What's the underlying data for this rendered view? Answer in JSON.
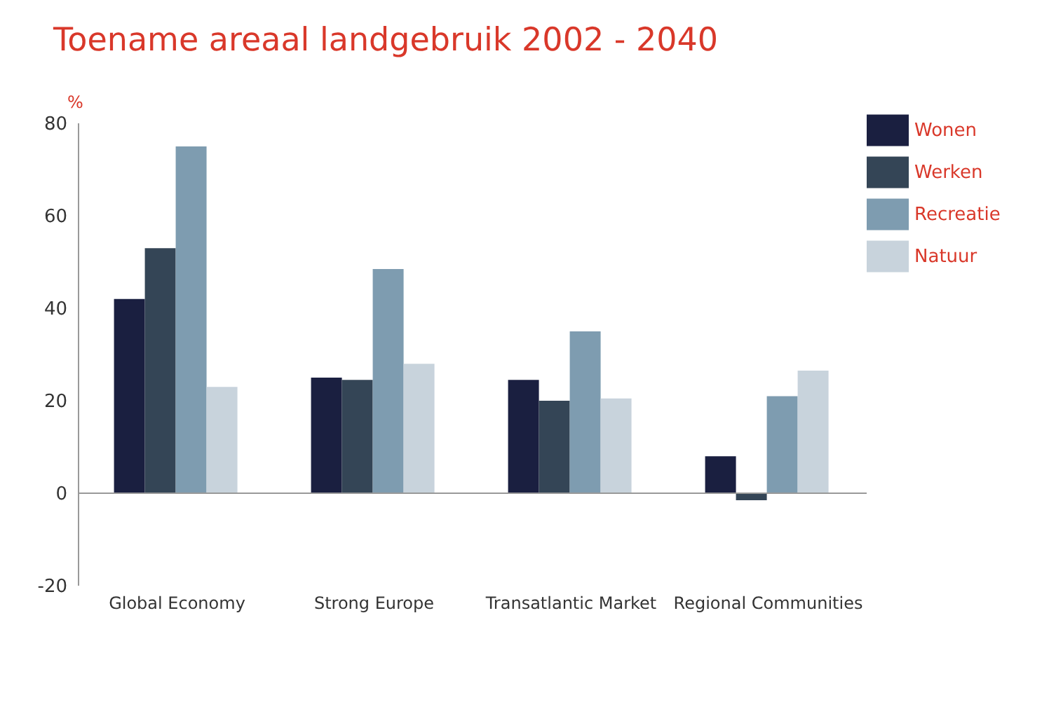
{
  "chart_data": {
    "type": "bar",
    "title": "Toename areaal landgebruik 2002 - 2040",
    "ylabel": "%",
    "categories": [
      "Global Economy",
      "Strong Europe",
      "Transatlantic Market",
      "Regional Communities"
    ],
    "series": [
      {
        "name": "Wonen",
        "color": "#1a1f40",
        "values": [
          42,
          25,
          24.5,
          8
        ]
      },
      {
        "name": "Werken",
        "color": "#344556",
        "values": [
          53,
          24.5,
          20,
          -1.5
        ]
      },
      {
        "name": "Recreatie",
        "color": "#7e9cb0",
        "values": [
          75,
          48.5,
          35,
          21
        ]
      },
      {
        "name": "Natuur",
        "color": "#c8d3dc",
        "values": [
          23,
          28,
          20.5,
          26.5
        ]
      }
    ],
    "ylim": [
      -20,
      80
    ],
    "yticks": [
      -20,
      0,
      20,
      40,
      60,
      80
    ],
    "legend": "top right"
  }
}
